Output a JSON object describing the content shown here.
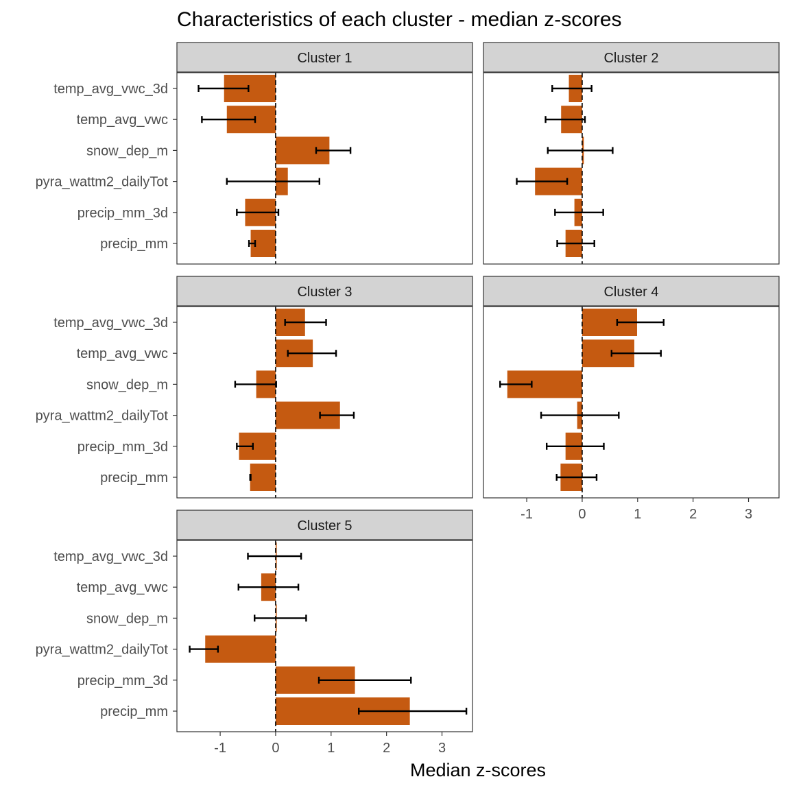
{
  "chart_data": {
    "type": "bar",
    "orientation": "horizontal",
    "title": "Characteristics of each cluster - median z-scores",
    "xlabel": "Median z-scores",
    "ylabel": "",
    "xlim": [
      -1.78,
      3.55
    ],
    "x_ticks": [
      -1,
      0,
      1,
      2,
      3
    ],
    "grid": false,
    "reference_line_x": 0,
    "bar_color": "#C55A11",
    "errorbar_color": "#000000",
    "strip_fill": "#D3D3D3",
    "categories": [
      "temp_avg_vwc_3d",
      "temp_avg_vwc",
      "snow_dep_m",
      "pyra_wattm2_dailyTot",
      "precip_mm_3d",
      "precip_mm"
    ],
    "facets": [
      {
        "name": "Cluster 1",
        "values": [
          -0.93,
          -0.88,
          0.97,
          0.22,
          -0.55,
          -0.45
        ],
        "err_low": [
          -1.39,
          -1.33,
          0.73,
          -0.88,
          -0.7,
          -0.48
        ],
        "err_high": [
          -0.49,
          -0.37,
          1.35,
          0.79,
          0.05,
          -0.37
        ]
      },
      {
        "name": "Cluster 2",
        "values": [
          -0.24,
          -0.38,
          0.03,
          -0.85,
          -0.14,
          -0.3
        ],
        "err_low": [
          -0.54,
          -0.66,
          -0.62,
          -1.18,
          -0.49,
          -0.45
        ],
        "err_high": [
          0.17,
          0.05,
          0.55,
          -0.27,
          0.38,
          0.22
        ]
      },
      {
        "name": "Cluster 3",
        "values": [
          0.53,
          0.67,
          -0.35,
          1.16,
          -0.66,
          -0.46
        ],
        "err_low": [
          0.17,
          0.22,
          -0.73,
          0.8,
          -0.7,
          -0.46
        ],
        "err_high": [
          0.91,
          1.09,
          0.01,
          1.41,
          -0.41,
          -0.45
        ]
      },
      {
        "name": "Cluster 4",
        "values": [
          0.99,
          0.94,
          -1.35,
          -0.09,
          -0.3,
          -0.39
        ],
        "err_low": [
          0.63,
          0.53,
          -1.48,
          -0.74,
          -0.64,
          -0.46
        ],
        "err_high": [
          1.47,
          1.42,
          -0.91,
          0.66,
          0.39,
          0.26
        ]
      },
      {
        "name": "Cluster 5",
        "values": [
          0.02,
          -0.26,
          0.02,
          -1.27,
          1.43,
          2.42
        ],
        "err_low": [
          -0.5,
          -0.67,
          -0.38,
          -1.55,
          0.78,
          1.5
        ],
        "err_high": [
          0.46,
          0.41,
          0.55,
          -1.04,
          2.44,
          3.44
        ]
      }
    ]
  }
}
